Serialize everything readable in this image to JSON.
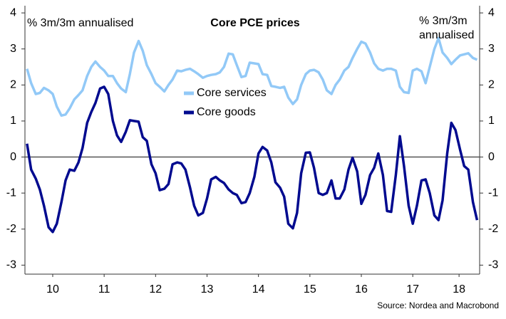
{
  "chart_data": {
    "type": "line",
    "title": "Core PCE prices",
    "ylabel": "% 3m/3m annualised",
    "y2label": "% 3m/3m annualised",
    "source": "Source: Nordea and Macrobond",
    "x": [
      2010,
      2010.08,
      2010.17,
      2010.25,
      2010.33,
      2010.42,
      2010.5,
      2010.58,
      2010.67,
      2010.75,
      2010.83,
      2010.92,
      2011,
      2011.08,
      2011.17,
      2011.25,
      2011.33,
      2011.42,
      2011.5,
      2011.58,
      2011.67,
      2011.75,
      2011.83,
      2011.92,
      2012,
      2012.08,
      2012.17,
      2012.25,
      2012.33,
      2012.42,
      2012.5,
      2012.58,
      2012.67,
      2012.75,
      2012.83,
      2012.92,
      2013,
      2013.08,
      2013.17,
      2013.25,
      2013.33,
      2013.42,
      2013.5,
      2013.58,
      2013.67,
      2013.75,
      2013.83,
      2013.92,
      2014,
      2014.08,
      2014.17,
      2014.25,
      2014.33,
      2014.42,
      2014.5,
      2014.58,
      2014.67,
      2014.75,
      2014.83,
      2014.92,
      2015,
      2015.08,
      2015.17,
      2015.25,
      2015.33,
      2015.42,
      2015.5,
      2015.58,
      2015.67,
      2015.75,
      2015.83,
      2015.92,
      2016,
      2016.08,
      2016.17,
      2016.25,
      2016.33,
      2016.42,
      2016.5,
      2016.58,
      2016.67,
      2016.75,
      2016.83,
      2016.92,
      2017,
      2017.08,
      2017.17,
      2017.25,
      2017.33,
      2017.42,
      2017.5,
      2017.58,
      2017.67,
      2017.75,
      2017.83,
      2017.92,
      2018,
      2018.08,
      2018.17,
      2018.25,
      2018.33,
      2018.42,
      2018.5,
      2018.58,
      2018.67,
      2018.75
    ],
    "series": [
      {
        "name": "Core services",
        "color": "#92c9f7",
        "values": [
          2.45,
          2.05,
          1.75,
          1.78,
          1.92,
          1.85,
          1.75,
          1.4,
          1.15,
          1.18,
          1.35,
          1.6,
          1.72,
          1.85,
          2.25,
          2.5,
          2.65,
          2.5,
          2.4,
          2.25,
          2.25,
          2.05,
          1.9,
          1.8,
          2.3,
          2.9,
          3.22,
          2.95,
          2.55,
          2.3,
          2.05,
          1.95,
          1.82,
          2.0,
          2.15,
          2.4,
          2.38,
          2.42,
          2.45,
          2.38,
          2.3,
          2.2,
          2.25,
          2.28,
          2.3,
          2.35,
          2.5,
          2.87,
          2.85,
          2.55,
          2.22,
          2.25,
          2.62,
          2.6,
          2.58,
          2.3,
          2.28,
          1.97,
          1.95,
          1.92,
          1.95,
          1.65,
          1.47,
          1.6,
          2.0,
          2.3,
          2.4,
          2.42,
          2.35,
          2.15,
          1.85,
          1.75,
          2.0,
          2.15,
          2.4,
          2.5,
          2.75,
          3.0,
          3.2,
          3.15,
          2.9,
          2.6,
          2.45,
          2.4,
          2.45,
          2.45,
          2.4,
          1.95,
          1.8,
          1.78,
          2.4,
          2.45,
          2.38,
          2.05,
          2.5,
          3.0,
          3.3,
          2.9,
          2.75,
          2.58,
          2.7,
          2.82,
          2.85,
          2.88,
          2.75,
          2.7
        ]
      },
      {
        "name": "Core goods",
        "color": "#000a8f",
        "values": [
          0.37,
          -0.35,
          -0.6,
          -0.9,
          -1.35,
          -1.95,
          -2.08,
          -1.85,
          -1.25,
          -0.65,
          -0.35,
          -0.38,
          -0.15,
          0.25,
          0.95,
          1.25,
          1.5,
          1.9,
          1.95,
          1.75,
          1.0,
          0.6,
          0.42,
          0.7,
          1.02,
          1.0,
          0.98,
          0.55,
          0.45,
          -0.2,
          -0.45,
          -0.92,
          -0.88,
          -0.75,
          -0.2,
          -0.15,
          -0.18,
          -0.35,
          -0.85,
          -1.35,
          -1.62,
          -1.55,
          -1.15,
          -0.62,
          -0.55,
          -0.65,
          -0.72,
          -0.9,
          -1.0,
          -1.05,
          -1.28,
          -1.25,
          -1.0,
          -0.55,
          0.1,
          0.28,
          0.18,
          -0.15,
          -0.7,
          -0.85,
          -1.1,
          -1.85,
          -1.98,
          -1.55,
          -0.45,
          0.12,
          0.13,
          -0.3,
          -1.0,
          -1.05,
          -1.0,
          -0.65,
          -1.15,
          -1.15,
          -0.9,
          -0.35,
          -0.02,
          -0.4,
          -1.3,
          -1.05,
          -0.5,
          -0.3,
          0.1,
          -0.5,
          -1.5,
          -1.52,
          -0.5,
          0.58,
          -0.25,
          -1.35,
          -1.85,
          -1.35,
          -0.65,
          -0.62,
          -1.0,
          -1.62,
          -1.75,
          -1.2,
          0.1,
          0.95,
          0.75,
          0.2,
          -0.25,
          -0.35,
          -1.25,
          -1.75
        ]
      }
    ],
    "xlim": [
      2009.96,
      2018.8
    ],
    "xticks": [
      {
        "value": 2010.5,
        "label": "10"
      },
      {
        "value": 2011.5,
        "label": "11"
      },
      {
        "value": 2012.5,
        "label": "12"
      },
      {
        "value": 2013.5,
        "label": "13"
      },
      {
        "value": 2014.5,
        "label": "14"
      },
      {
        "value": 2015.5,
        "label": "15"
      },
      {
        "value": 2016.5,
        "label": "16"
      },
      {
        "value": 2017.5,
        "label": "17"
      },
      {
        "value": 2018.4,
        "label": "18"
      }
    ],
    "ylim": [
      -3.25,
      4.2
    ],
    "yticks": [
      -3,
      -2,
      -1,
      0,
      1,
      2,
      3,
      4
    ],
    "y2lim": [
      -3.25,
      4.2
    ],
    "y2ticks": [
      -3,
      -2,
      -1,
      0,
      1,
      2,
      3,
      4
    ],
    "grid": false,
    "legend": "center"
  }
}
